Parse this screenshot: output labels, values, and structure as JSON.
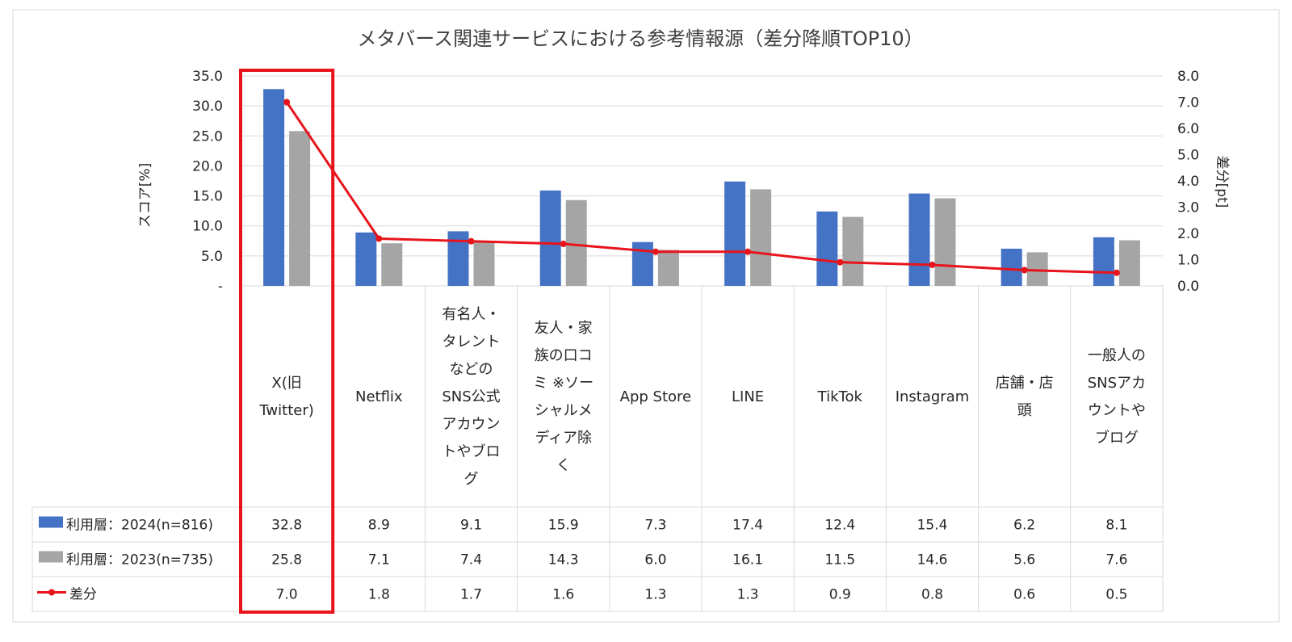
{
  "chart_data": {
    "type": "bar",
    "title": "メタバース関連サービスにおける参考情報源（差分降順TOP10）",
    "ylabel": "スコア[%]",
    "y2label": "差分[pt]",
    "ylim": [
      0,
      35
    ],
    "y2lim": [
      0,
      8
    ],
    "yticks": [
      "-",
      "5.0",
      "10.0",
      "15.0",
      "20.0",
      "25.0",
      "30.0",
      "35.0"
    ],
    "y2ticks": [
      "0.0",
      "1.0",
      "2.0",
      "3.0",
      "4.0",
      "5.0",
      "6.0",
      "7.0",
      "8.0"
    ],
    "grid": true,
    "legend": "data-table",
    "categories": [
      [
        "X(旧",
        "Twitter)"
      ],
      [
        "Netflix"
      ],
      [
        "有名人・",
        "タレント",
        "などの",
        "SNS公式",
        "アカウン",
        "トやブロ",
        "グ"
      ],
      [
        "友人・家",
        "族の口コ",
        "ミ ※ソー",
        "シャルメ",
        "ディア除",
        "く"
      ],
      [
        "App Store"
      ],
      [
        "LINE"
      ],
      [
        "TikTok"
      ],
      [
        "Instagram"
      ],
      [
        "店舗・店",
        "頭"
      ],
      [
        "一般人の",
        "SNSアカ",
        "ウントや",
        "ブログ"
      ]
    ],
    "series": [
      {
        "name": "利用層：2024(n=816)",
        "kind": "bar",
        "axis": "left",
        "color": "#4472C4",
        "values": [
          32.8,
          8.9,
          9.1,
          15.9,
          7.3,
          17.4,
          12.4,
          15.4,
          6.2,
          8.1
        ],
        "labels": [
          "32.8",
          "8.9",
          "9.1",
          "15.9",
          "7.3",
          "17.4",
          "12.4",
          "15.4",
          "6.2",
          "8.1"
        ]
      },
      {
        "name": "利用層：2023(n=735)",
        "kind": "bar",
        "axis": "left",
        "color": "#A5A5A5",
        "values": [
          25.8,
          7.1,
          7.4,
          14.3,
          6.0,
          16.1,
          11.5,
          14.6,
          5.6,
          7.6
        ],
        "labels": [
          "25.8",
          "7.1",
          "7.4",
          "14.3",
          "6.0",
          "16.1",
          "11.5",
          "14.6",
          "5.6",
          "7.6"
        ]
      },
      {
        "name": "差分",
        "kind": "line",
        "axis": "right",
        "color": "#E8141B",
        "values": [
          7.0,
          1.8,
          1.7,
          1.6,
          1.3,
          1.3,
          0.9,
          0.8,
          0.6,
          0.5
        ],
        "labels": [
          "7.0",
          "1.8",
          "1.7",
          "1.6",
          "1.3",
          "1.3",
          "0.9",
          "0.8",
          "0.6",
          "0.5"
        ]
      }
    ],
    "highlight": {
      "category_index": 0,
      "color": "#E8141B"
    }
  }
}
